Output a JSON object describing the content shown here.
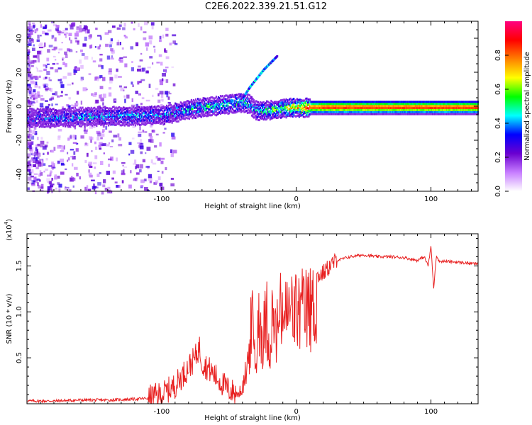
{
  "title": "C2E6.2022.339.21.51.G12",
  "chart_data": [
    {
      "type": "heatmap",
      "xlabel": "Height of straight line (km)",
      "ylabel": "Frequency (Hz)",
      "xlim": [
        -200,
        135
      ],
      "ylim": [
        -50,
        50
      ],
      "xticks": [
        -100,
        0,
        100
      ],
      "xtick_labels": [
        "-100",
        "0",
        "100"
      ],
      "yticks": [
        -40,
        -20,
        0,
        20,
        40
      ],
      "ytick_labels": [
        "-40",
        "-20",
        "0",
        "20",
        "40"
      ],
      "colorbar": {
        "label": "Normalized spectral amplitude",
        "range": [
          0,
          1
        ],
        "ticks": [
          0.0,
          0.2,
          0.4,
          0.6,
          0.8
        ],
        "tick_labels": [
          "0.0",
          "0.2",
          "0.4",
          "0.6",
          "0.8"
        ],
        "colors": [
          "#ffffff",
          "#c77dff",
          "#6a00d0",
          "#0000ff",
          "#00ffff",
          "#00ff00",
          "#ffff00",
          "#ff8000",
          "#ff0000",
          "#ff0080"
        ]
      },
      "ridge": {
        "x": [
          -200,
          -180,
          -160,
          -140,
          -120,
          -100,
          -90,
          -80,
          -70,
          -60,
          -50,
          -40,
          -35,
          -30,
          -25,
          -20,
          -10,
          0,
          10,
          20,
          50,
          100,
          135
        ],
        "y": [
          -6,
          -6,
          -5.5,
          -5,
          -5,
          -4.5,
          -3,
          -1,
          0,
          1,
          2,
          3,
          2,
          -2,
          -2,
          -1.5,
          -0.5,
          0,
          0,
          0,
          0,
          0,
          0
        ],
        "amplitude": [
          0.25,
          0.3,
          0.35,
          0.35,
          0.35,
          0.35,
          0.4,
          0.4,
          0.45,
          0.45,
          0.45,
          0.45,
          0.4,
          0.4,
          0.45,
          0.5,
          0.6,
          0.75,
          0.85,
          0.9,
          0.9,
          0.9,
          0.9
        ]
      },
      "branch": {
        "x": [
          -40,
          -35,
          -30,
          -25,
          -20,
          -15
        ],
        "y": [
          6,
          12,
          17,
          22,
          26,
          30
        ]
      }
    },
    {
      "type": "line",
      "xlabel": "Height of straight line (km)",
      "ylabel": "SNR (10 * v/v)",
      "y_scale_label": "(x10",
      "y_scale_exp": "4",
      "xlim": [
        -200,
        135
      ],
      "ylim": [
        0,
        1.85
      ],
      "xticks": [
        -100,
        0,
        100
      ],
      "xtick_labels": [
        "-100",
        "0",
        "100"
      ],
      "yticks": [
        0.5,
        1.0,
        1.5
      ],
      "ytick_labels": [
        "0.5",
        "1.0",
        "1.5"
      ],
      "series": [
        {
          "color": "#e82020",
          "x": [
            -200,
            -180,
            -160,
            -140,
            -120,
            -110,
            -100,
            -95,
            -90,
            -85,
            -80,
            -75,
            -72,
            -70,
            -65,
            -60,
            -55,
            -50,
            -45,
            -40,
            -38,
            -35,
            -33,
            -30,
            -28,
            -25,
            -22,
            -20,
            -18,
            -15,
            -12,
            -10,
            -8,
            -5,
            -2,
            0,
            5,
            10,
            15,
            20,
            25,
            30,
            40,
            50,
            60,
            70,
            80,
            90,
            95,
            98,
            100,
            102,
            104,
            106,
            110,
            120,
            135
          ],
          "y": [
            0.03,
            0.03,
            0.04,
            0.04,
            0.05,
            0.06,
            0.1,
            0.15,
            0.2,
            0.3,
            0.4,
            0.5,
            0.62,
            0.45,
            0.38,
            0.3,
            0.22,
            0.15,
            0.12,
            0.2,
            0.4,
            0.7,
            1.2,
            0.5,
            1.3,
            0.9,
            1.25,
            0.75,
            1.2,
            0.95,
            1.25,
            1.3,
            1.22,
            1.28,
            1.3,
            1.28,
            1.3,
            1.32,
            1.38,
            1.42,
            1.5,
            1.56,
            1.6,
            1.62,
            1.6,
            1.6,
            1.59,
            1.56,
            1.6,
            1.5,
            1.72,
            1.25,
            1.62,
            1.55,
            1.55,
            1.54,
            1.52
          ]
        }
      ]
    }
  ]
}
